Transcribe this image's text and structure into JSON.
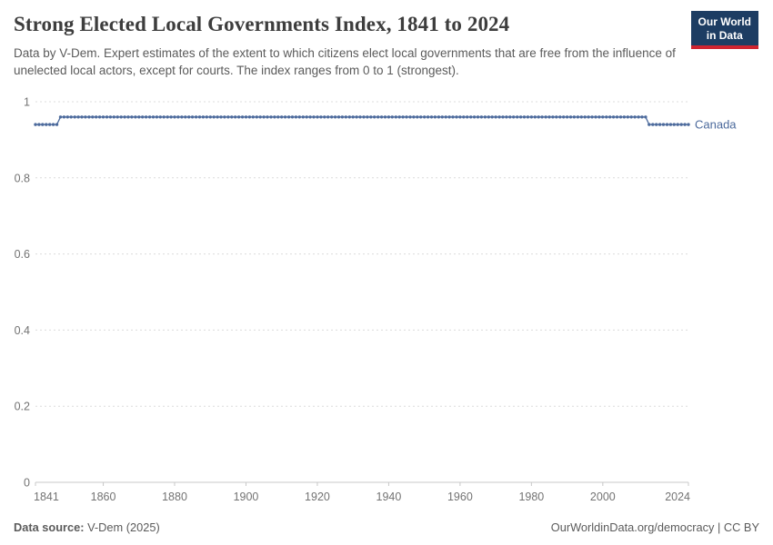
{
  "header": {
    "title": "Strong Elected Local Governments Index, 1841 to 2024",
    "subtitle": "Data by V-Dem. Expert estimates of the extent to which citizens elect local governments that are free from the influence of unelected local actors, except for courts. The index ranges from 0 to 1 (strongest)."
  },
  "logo": {
    "line1": "Our World",
    "line2": "in Data",
    "bg_color": "#1d3d63",
    "accent_color": "#cf2430"
  },
  "chart_data": {
    "type": "line",
    "title": "Strong Elected Local Governments Index, 1841 to 2024",
    "xlabel": "",
    "ylabel": "",
    "x": {
      "min": 1841,
      "max": 2024,
      "ticks": [
        1841,
        1860,
        1880,
        1900,
        1920,
        1940,
        1960,
        1980,
        2000,
        2024
      ]
    },
    "y": {
      "min": 0,
      "max": 1,
      "ticks": [
        0,
        0.2,
        0.4,
        0.6,
        0.8,
        1
      ]
    },
    "grid": "horizontal-dashed",
    "legend_position": "end-of-line-label",
    "series": [
      {
        "name": "Canada",
        "color": "#4c6a9c",
        "marker": "dot",
        "segments": [
          {
            "start_year": 1841,
            "end_year": 1847,
            "value": 0.94
          },
          {
            "start_year": 1848,
            "end_year": 2012,
            "value": 0.96
          },
          {
            "start_year": 2013,
            "end_year": 2024,
            "value": 0.94
          }
        ]
      }
    ],
    "axis_colors": {
      "tick_label": "#737373",
      "gridline": "#dcdcdc",
      "axis_line": "#c8c8c8"
    }
  },
  "footer": {
    "source_label": "Data source:",
    "source_value": " V-Dem (2025)",
    "link_text": "OurWorldinData.org/democracy | CC BY"
  }
}
